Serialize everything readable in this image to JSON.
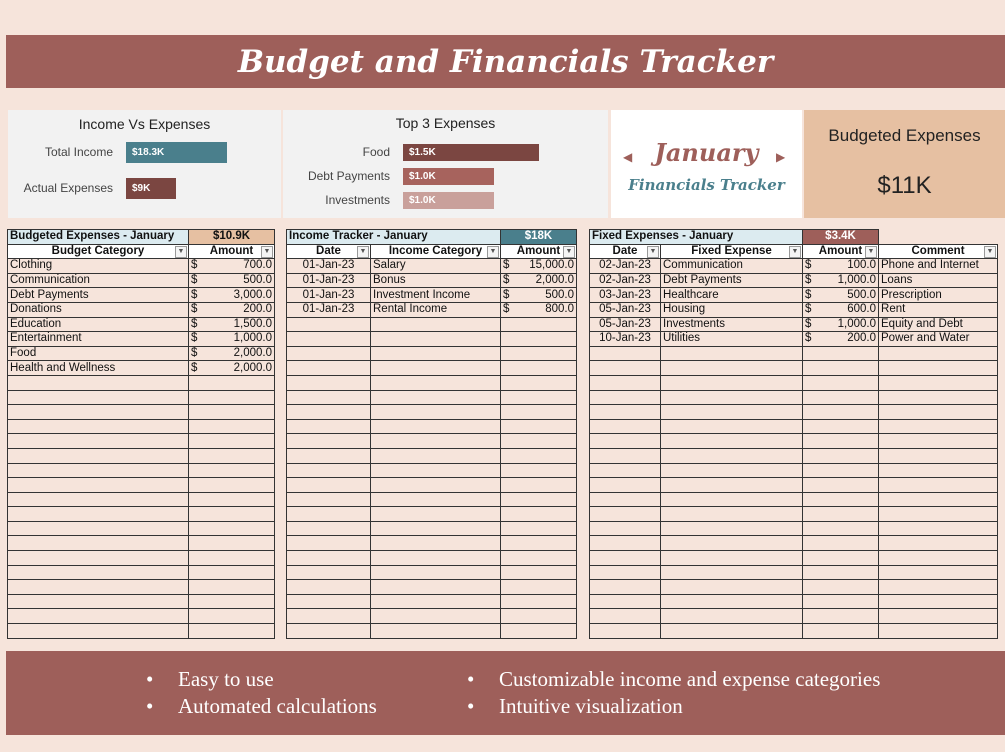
{
  "header": {
    "title": "Budget and Financials Tracker"
  },
  "income_vs_expenses": {
    "title": "Income Vs Expenses",
    "bars": [
      {
        "label": "Total Income",
        "value": 18300,
        "value_label": "$18.3K",
        "color": "#4a7f8c"
      },
      {
        "label": "Actual Expenses",
        "value": 9000,
        "value_label": "$9K",
        "color": "#7b4641"
      }
    ]
  },
  "top_expenses": {
    "title": "Top 3 Expenses",
    "bars": [
      {
        "label": "Food",
        "value": 1500,
        "value_label": "$1.5K",
        "color": "#7b4641"
      },
      {
        "label": "Debt Payments",
        "value": 1000,
        "value_label": "$1.0K",
        "color": "#a7635d"
      },
      {
        "label": "Investments",
        "value": 1000,
        "value_label": "$1.0K",
        "color": "#c9a09b"
      }
    ]
  },
  "month_card": {
    "month": "January",
    "subtitle": "Financials Tracker"
  },
  "budget_card": {
    "title": "Budgeted Expenses",
    "value": "$11K"
  },
  "tables": [
    {
      "title": "Budgeted Expenses - January",
      "total": "$10.9K",
      "headers": [
        "Budget Category",
        "Amount"
      ],
      "rows": [
        [
          "Clothing",
          [
            "$",
            "700.0"
          ]
        ],
        [
          "Communication",
          [
            "$",
            "500.0"
          ]
        ],
        [
          "Debt Payments",
          [
            "$",
            "3,000.0"
          ]
        ],
        [
          "Donations",
          [
            "$",
            "200.0"
          ]
        ],
        [
          "Education",
          [
            "$",
            "1,500.0"
          ]
        ],
        [
          "Entertainment",
          [
            "$",
            "1,000.0"
          ]
        ],
        [
          "Food",
          [
            "$",
            "2,000.0"
          ]
        ],
        [
          "Health and Wellness",
          [
            "$",
            "2,000.0"
          ]
        ]
      ]
    },
    {
      "title": "Income Tracker - January",
      "total": "$18K",
      "headers": [
        "Date",
        "Income Category",
        "Amount"
      ],
      "rows": [
        [
          "01-Jan-23",
          "Salary",
          [
            "$",
            "15,000.0"
          ]
        ],
        [
          "01-Jan-23",
          "Bonus",
          [
            "$",
            "2,000.0"
          ]
        ],
        [
          "01-Jan-23",
          "Investment Income",
          [
            "$",
            "500.0"
          ]
        ],
        [
          "01-Jan-23",
          "Rental Income",
          [
            "$",
            "800.0"
          ]
        ]
      ]
    },
    {
      "title": "Fixed Expenses - January",
      "total": "$3.4K",
      "headers": [
        "Date",
        "Fixed Expense",
        "Amount",
        "Comment"
      ],
      "rows": [
        [
          "02-Jan-23",
          "Communication",
          [
            "$",
            "100.0"
          ],
          "Phone and Internet"
        ],
        [
          "02-Jan-23",
          "Debt Payments",
          [
            "$",
            "1,000.0"
          ],
          "Loans"
        ],
        [
          "03-Jan-23",
          "Healthcare",
          [
            "$",
            "500.0"
          ],
          "Prescription"
        ],
        [
          "05-Jan-23",
          "Housing",
          [
            "$",
            "600.0"
          ],
          "Rent"
        ],
        [
          "05-Jan-23",
          "Investments",
          [
            "$",
            "1,000.0"
          ],
          "Equity and Debt"
        ],
        [
          "10-Jan-23",
          "Utilities",
          [
            "$",
            "200.0"
          ],
          "Power and Water"
        ]
      ]
    }
  ],
  "footer": {
    "bullets": [
      "Easy to use",
      "Automated calculations",
      "Customizable income and expense categories",
      "Intuitive visualization"
    ]
  }
}
